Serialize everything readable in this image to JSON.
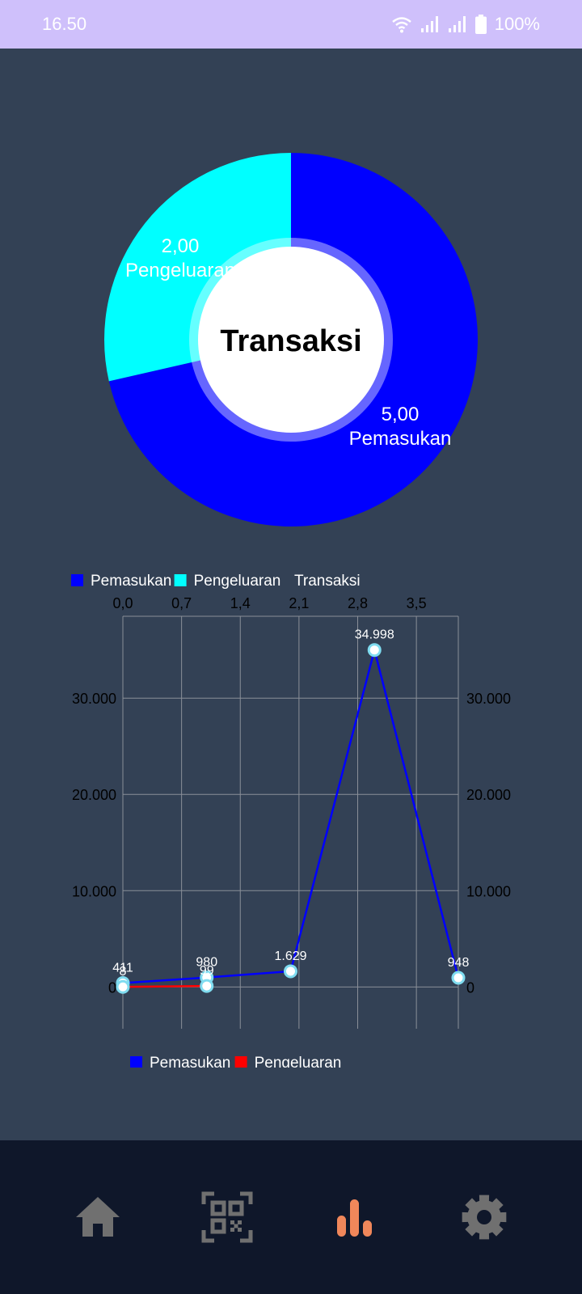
{
  "status_bar": {
    "time": "16.50",
    "battery": "100%",
    "icons": [
      "wifi-icon",
      "signal-icon",
      "signal-icon",
      "battery-icon"
    ]
  },
  "donut": {
    "center_label": "Transaksi",
    "slices": [
      {
        "value_label": "5,00",
        "name": "Pemasukan",
        "value": 5,
        "color": "#0000ff"
      },
      {
        "value_label": "2,00",
        "name": "Pengeluaran",
        "value": 2,
        "color": "#00ffff"
      }
    ]
  },
  "chart_data": {
    "type": "line",
    "title": "",
    "top_legend": [
      {
        "name": "Pemasukan",
        "color": "#0000ff"
      },
      {
        "name": "Pengeluaran",
        "color": "#00ffff"
      },
      {
        "name": "Transaksi",
        "color": ""
      }
    ],
    "x_ticks": [
      "0,0",
      "0,7",
      "1,4",
      "2,1",
      "2,8",
      "3,5"
    ],
    "x_tick_values": [
      0,
      0.7,
      1.4,
      2.1,
      2.8,
      3.5
    ],
    "xlim": [
      0,
      4
    ],
    "y_ticks": [
      "0",
      "10.000",
      "20.000",
      "30.000"
    ],
    "y_tick_values": [
      0,
      10000,
      20000,
      30000
    ],
    "ylim": [
      -3500,
      38500
    ],
    "grid": true,
    "series": [
      {
        "name": "Pemasukan",
        "color": "#0000ff",
        "x": [
          0,
          1,
          2,
          3,
          4
        ],
        "values": [
          411,
          980,
          1629,
          34998,
          948
        ],
        "labels": [
          "411",
          "980",
          "1.629",
          "34.998",
          "948"
        ]
      },
      {
        "name": "Pengeluaran",
        "color": "#ff0000",
        "x": [
          0,
          1
        ],
        "values": [
          8,
          99
        ],
        "labels": [
          "8",
          "99"
        ]
      }
    ],
    "bottom_legend": [
      {
        "name": "Pemasukan",
        "color": "#0000ff"
      },
      {
        "name": "Pengeluaran",
        "color": "#ff0000"
      }
    ]
  },
  "nav": {
    "items": [
      {
        "name": "home-icon",
        "active": false
      },
      {
        "name": "qr-scan-icon",
        "active": false
      },
      {
        "name": "bar-chart-icon",
        "active": true
      },
      {
        "name": "settings-icon",
        "active": false
      }
    ],
    "active_color": "#f0875a",
    "inactive_color": "#707070"
  }
}
